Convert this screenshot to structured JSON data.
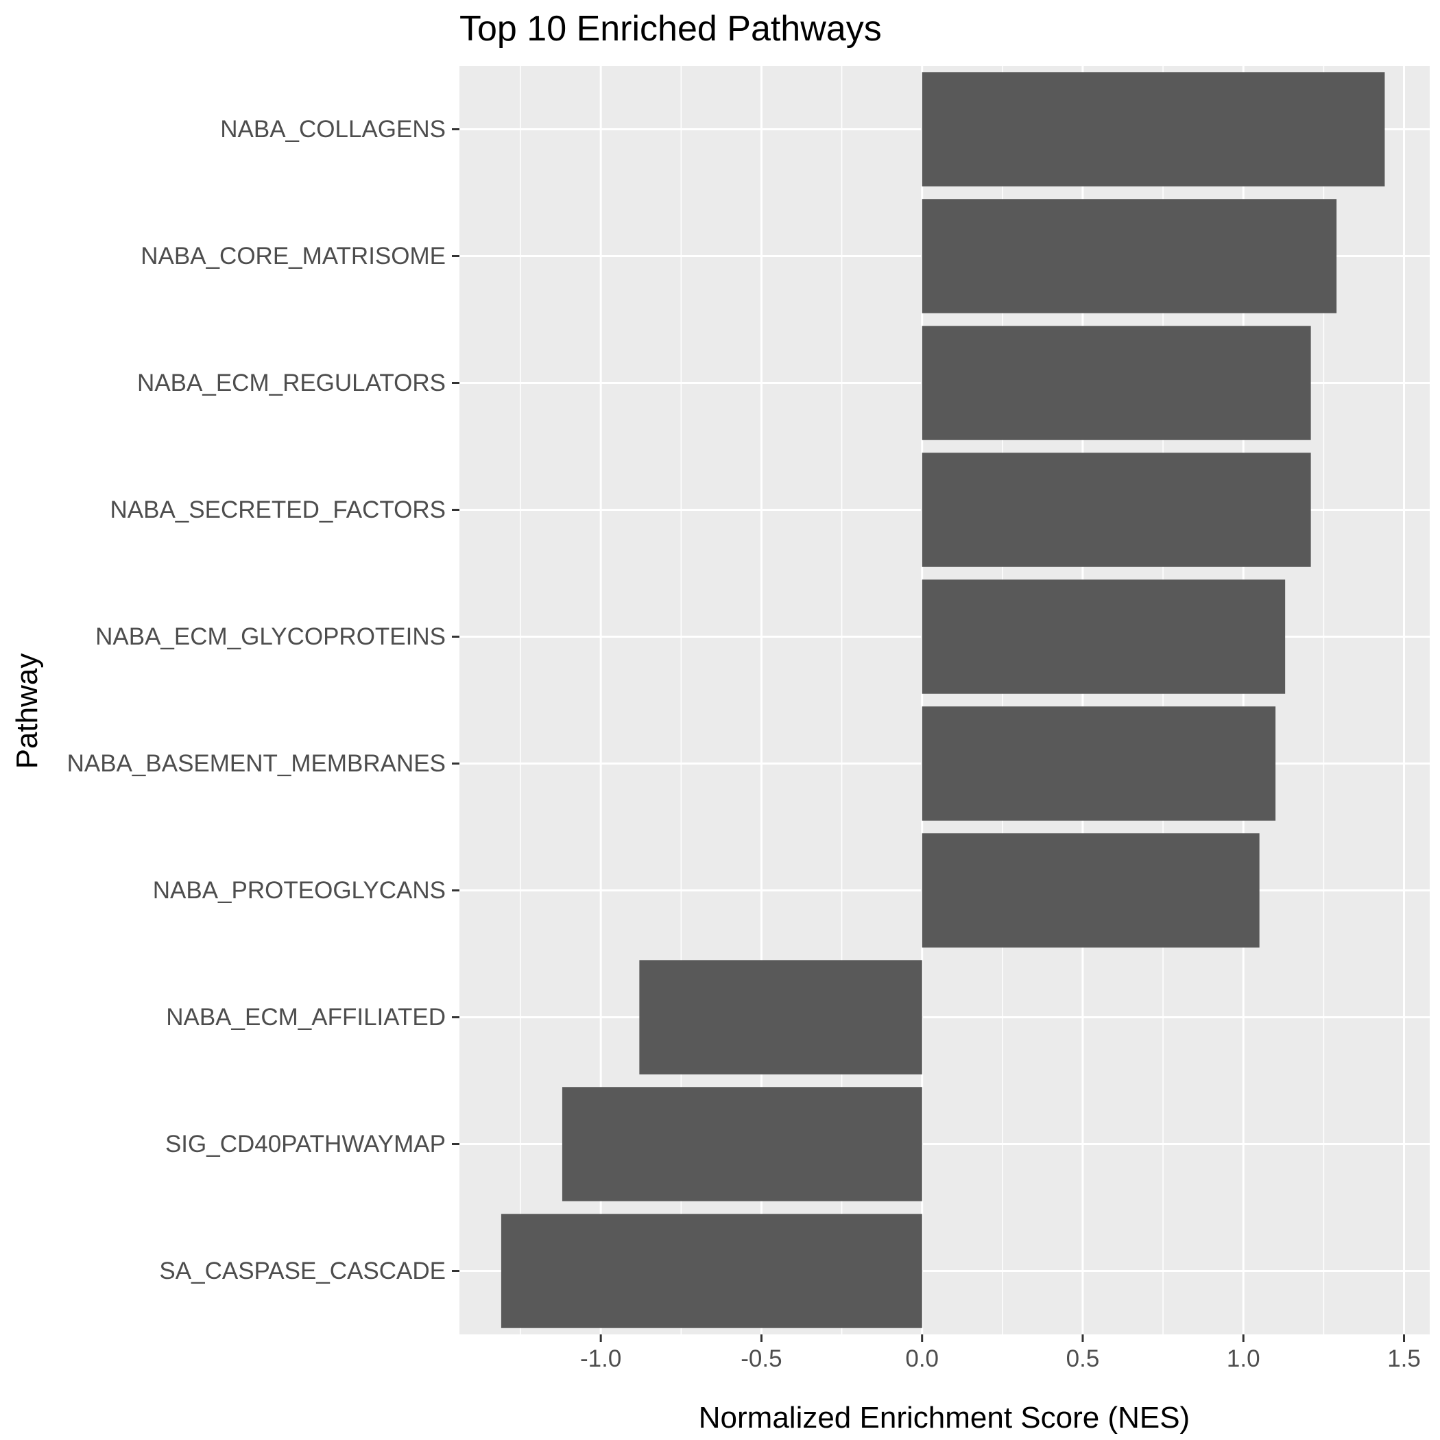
{
  "chart_data": {
    "type": "bar",
    "orientation": "horizontal",
    "title": "Top 10 Enriched Pathways",
    "xlabel": "Normalized Enrichment Score (NES)",
    "ylabel": "Pathway",
    "xlim": [
      -1.44,
      1.58
    ],
    "x_ticks": [
      -1.0,
      -0.5,
      0.0,
      0.5,
      1.0,
      1.5
    ],
    "x_tick_labels": [
      "-1.0",
      "-0.5",
      "0.0",
      "0.5",
      "1.0",
      "1.5"
    ],
    "categories": [
      "NABA_COLLAGENS",
      "NABA_CORE_MATRISOME",
      "NABA_ECM_REGULATORS",
      "NABA_SECRETED_FACTORS",
      "NABA_ECM_GLYCOPROTEINS",
      "NABA_BASEMENT_MEMBRANES",
      "NABA_PROTEOGLYCANS",
      "NABA_ECM_AFFILIATED",
      "SIG_CD40PATHWAYMAP",
      "SA_CASPASE_CASCADE"
    ],
    "values": [
      1.44,
      1.29,
      1.21,
      1.21,
      1.13,
      1.1,
      1.05,
      -0.88,
      -1.12,
      -1.31
    ],
    "grid": true,
    "legend": "none",
    "colors": {
      "bar": "#595959",
      "panel_background": "#ebebeb",
      "grid": "#ffffff",
      "tick_text": "#4d4d4d",
      "text": "#000000"
    }
  }
}
